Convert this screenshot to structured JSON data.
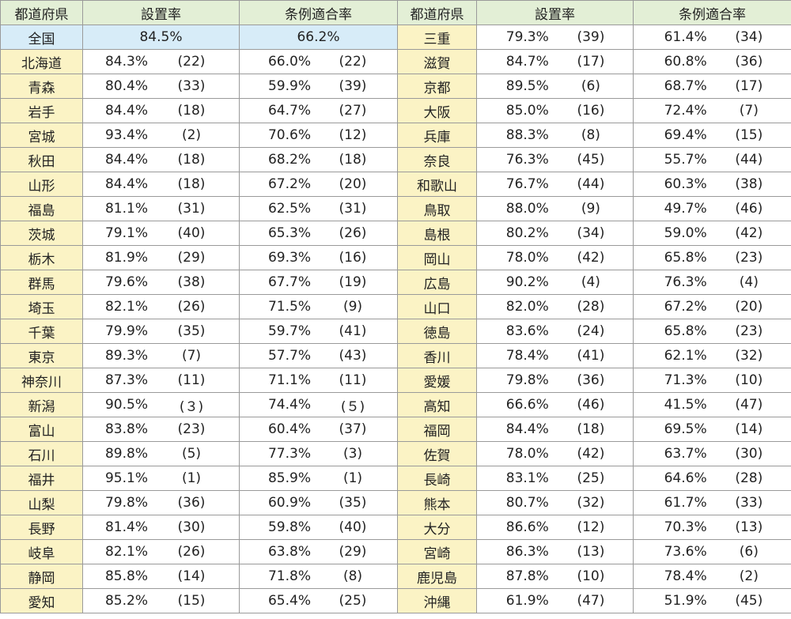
{
  "headers": [
    "都道府県",
    "設置率",
    "条例適合率",
    "都道府県",
    "設置率",
    "条例適合率"
  ],
  "national": {
    "name": "全国",
    "setup": "84.5%",
    "ordinance": "66.2%"
  },
  "left": [
    {
      "name": "北海道",
      "setup": "84.3%",
      "setup_rank": "(22)",
      "ord": "66.0%",
      "ord_rank": "(22)"
    },
    {
      "name": "青森",
      "setup": "80.4%",
      "setup_rank": "(33)",
      "ord": "59.9%",
      "ord_rank": "(39)"
    },
    {
      "name": "岩手",
      "setup": "84.4%",
      "setup_rank": "(18)",
      "ord": "64.7%",
      "ord_rank": "(27)"
    },
    {
      "name": "宮城",
      "setup": "93.4%",
      "setup_rank": "(2)",
      "ord": "70.6%",
      "ord_rank": "(12)"
    },
    {
      "name": "秋田",
      "setup": "84.4%",
      "setup_rank": "(18)",
      "ord": "68.2%",
      "ord_rank": "(18)"
    },
    {
      "name": "山形",
      "setup": "84.4%",
      "setup_rank": "(18)",
      "ord": "67.2%",
      "ord_rank": "(20)"
    },
    {
      "name": "福島",
      "setup": "81.1%",
      "setup_rank": "(31)",
      "ord": "62.5%",
      "ord_rank": "(31)"
    },
    {
      "name": "茨城",
      "setup": "79.1%",
      "setup_rank": "(40)",
      "ord": "65.3%",
      "ord_rank": "(26)"
    },
    {
      "name": "栃木",
      "setup": "81.9%",
      "setup_rank": "(29)",
      "ord": "69.3%",
      "ord_rank": "(16)"
    },
    {
      "name": "群馬",
      "setup": "79.6%",
      "setup_rank": "(38)",
      "ord": "67.7%",
      "ord_rank": "(19)"
    },
    {
      "name": "埼玉",
      "setup": "82.1%",
      "setup_rank": "(26)",
      "ord": "71.5%",
      "ord_rank": "(9)"
    },
    {
      "name": "千葉",
      "setup": "79.9%",
      "setup_rank": "(35)",
      "ord": "59.7%",
      "ord_rank": "(41)"
    },
    {
      "name": "東京",
      "setup": "89.3%",
      "setup_rank": "(7)",
      "ord": "57.7%",
      "ord_rank": "(43)"
    },
    {
      "name": "神奈川",
      "setup": "87.3%",
      "setup_rank": "(11)",
      "ord": "71.1%",
      "ord_rank": "(11)"
    },
    {
      "name": "新潟",
      "setup": "90.5%",
      "setup_rank": "(３)",
      "ord": "74.4%",
      "ord_rank": "(５)"
    },
    {
      "name": "富山",
      "setup": "83.8%",
      "setup_rank": "(23)",
      "ord": "60.4%",
      "ord_rank": "(37)"
    },
    {
      "name": "石川",
      "setup": "89.8%",
      "setup_rank": "(5)",
      "ord": "77.3%",
      "ord_rank": "(3)"
    },
    {
      "name": "福井",
      "setup": "95.1%",
      "setup_rank": "(1)",
      "ord": "85.9%",
      "ord_rank": "(1)"
    },
    {
      "name": "山梨",
      "setup": "79.8%",
      "setup_rank": "(36)",
      "ord": "60.9%",
      "ord_rank": "(35)"
    },
    {
      "name": "長野",
      "setup": "81.4%",
      "setup_rank": "(30)",
      "ord": "59.8%",
      "ord_rank": "(40)"
    },
    {
      "name": "岐阜",
      "setup": "82.1%",
      "setup_rank": "(26)",
      "ord": "63.8%",
      "ord_rank": "(29)"
    },
    {
      "name": "静岡",
      "setup": "85.8%",
      "setup_rank": "(14)",
      "ord": "71.8%",
      "ord_rank": "(8)"
    },
    {
      "name": "愛知",
      "setup": "85.2%",
      "setup_rank": "(15)",
      "ord": "65.4%",
      "ord_rank": "(25)"
    }
  ],
  "right": [
    {
      "name": "三重",
      "setup": "79.3%",
      "setup_rank": "(39)",
      "ord": "61.4%",
      "ord_rank": "(34)"
    },
    {
      "name": "滋賀",
      "setup": "84.7%",
      "setup_rank": "(17)",
      "ord": "60.8%",
      "ord_rank": "(36)"
    },
    {
      "name": "京都",
      "setup": "89.5%",
      "setup_rank": "(6)",
      "ord": "68.7%",
      "ord_rank": "(17)"
    },
    {
      "name": "大阪",
      "setup": "85.0%",
      "setup_rank": "(16)",
      "ord": "72.4%",
      "ord_rank": "(7)"
    },
    {
      "name": "兵庫",
      "setup": "88.3%",
      "setup_rank": "(8)",
      "ord": "69.4%",
      "ord_rank": "(15)"
    },
    {
      "name": "奈良",
      "setup": "76.3%",
      "setup_rank": "(45)",
      "ord": "55.7%",
      "ord_rank": "(44)"
    },
    {
      "name": "和歌山",
      "setup": "76.7%",
      "setup_rank": "(44)",
      "ord": "60.3%",
      "ord_rank": "(38)"
    },
    {
      "name": "鳥取",
      "setup": "88.0%",
      "setup_rank": "(9)",
      "ord": "49.7%",
      "ord_rank": "(46)"
    },
    {
      "name": "島根",
      "setup": "80.2%",
      "setup_rank": "(34)",
      "ord": "59.0%",
      "ord_rank": "(42)"
    },
    {
      "name": "岡山",
      "setup": "78.0%",
      "setup_rank": "(42)",
      "ord": "65.8%",
      "ord_rank": "(23)"
    },
    {
      "name": "広島",
      "setup": "90.2%",
      "setup_rank": "(4)",
      "ord": "76.3%",
      "ord_rank": "(4)"
    },
    {
      "name": "山口",
      "setup": "82.0%",
      "setup_rank": "(28)",
      "ord": "67.2%",
      "ord_rank": "(20)"
    },
    {
      "name": "徳島",
      "setup": "83.6%",
      "setup_rank": "(24)",
      "ord": "65.8%",
      "ord_rank": "(23)"
    },
    {
      "name": "香川",
      "setup": "78.4%",
      "setup_rank": "(41)",
      "ord": "62.1%",
      "ord_rank": "(32)"
    },
    {
      "name": "愛媛",
      "setup": "79.8%",
      "setup_rank": "(36)",
      "ord": "71.3%",
      "ord_rank": "(10)"
    },
    {
      "name": "高知",
      "setup": "66.6%",
      "setup_rank": "(46)",
      "ord": "41.5%",
      "ord_rank": "(47)"
    },
    {
      "name": "福岡",
      "setup": "84.4%",
      "setup_rank": "(18)",
      "ord": "69.5%",
      "ord_rank": "(14)"
    },
    {
      "name": "佐賀",
      "setup": "78.0%",
      "setup_rank": "(42)",
      "ord": "63.7%",
      "ord_rank": "(30)"
    },
    {
      "name": "長崎",
      "setup": "83.1%",
      "setup_rank": "(25)",
      "ord": "64.6%",
      "ord_rank": "(28)"
    },
    {
      "name": "熊本",
      "setup": "80.7%",
      "setup_rank": "(32)",
      "ord": "61.7%",
      "ord_rank": "(33)"
    },
    {
      "name": "大分",
      "setup": "86.6%",
      "setup_rank": "(12)",
      "ord": "70.3%",
      "ord_rank": "(13)"
    },
    {
      "name": "宮崎",
      "setup": "86.3%",
      "setup_rank": "(13)",
      "ord": "73.6%",
      "ord_rank": "(6)"
    },
    {
      "name": "鹿児島",
      "setup": "87.8%",
      "setup_rank": "(10)",
      "ord": "78.4%",
      "ord_rank": "(2)"
    },
    {
      "name": "沖縄",
      "setup": "61.9%",
      "setup_rank": "(47)",
      "ord": "51.9%",
      "ord_rank": "(45)"
    }
  ]
}
